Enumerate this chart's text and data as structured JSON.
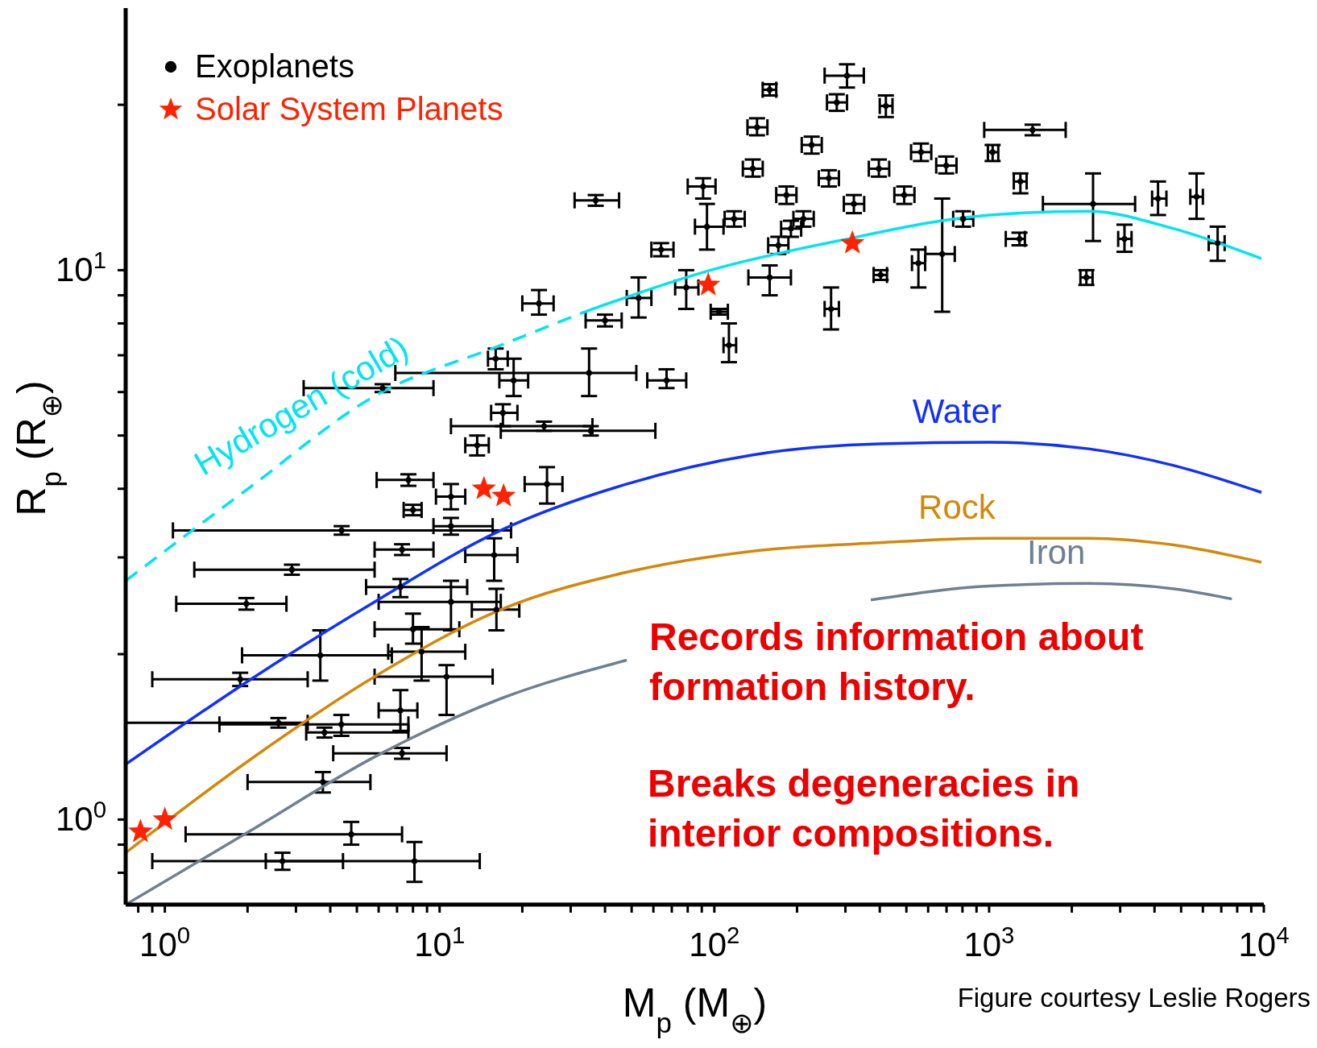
{
  "chart_data": {
    "type": "scatter",
    "xlabel": "M$_{p}$ (M$_{⊕}$)",
    "ylabel": "R$_{p}$ (R$_{⊕}$)",
    "log": "xy",
    "legend": "top left",
    "xlim": [
      0.72,
      10000
    ],
    "ylim": [
      0.7,
      30
    ],
    "xticks": [
      {
        "value": 0.8,
        "label": null
      },
      {
        "value": 0.9,
        "label": null
      },
      {
        "value": 1,
        "label": "10$^{0}$"
      },
      {
        "value": 2,
        "label": null
      },
      {
        "value": 3,
        "label": null
      },
      {
        "value": 4,
        "label": null
      },
      {
        "value": 5,
        "label": null
      },
      {
        "value": 6,
        "label": null
      },
      {
        "value": 7,
        "label": null
      },
      {
        "value": 8,
        "label": null
      },
      {
        "value": 9,
        "label": null
      },
      {
        "value": 10,
        "label": "10$^{1}$"
      },
      {
        "value": 20,
        "label": null
      },
      {
        "value": 30,
        "label": null
      },
      {
        "value": 40,
        "label": null
      },
      {
        "value": 50,
        "label": null
      },
      {
        "value": 60,
        "label": null
      },
      {
        "value": 70,
        "label": null
      },
      {
        "value": 80,
        "label": null
      },
      {
        "value": 90,
        "label": null
      },
      {
        "value": 100,
        "label": "10$^{2}$"
      },
      {
        "value": 200,
        "label": null
      },
      {
        "value": 300,
        "label": null
      },
      {
        "value": 400,
        "label": null
      },
      {
        "value": 500,
        "label": null
      },
      {
        "value": 600,
        "label": null
      },
      {
        "value": 700,
        "label": null
      },
      {
        "value": 800,
        "label": null
      },
      {
        "value": 900,
        "label": null
      },
      {
        "value": 1000,
        "label": "10$^{3}$"
      },
      {
        "value": 2000,
        "label": null
      },
      {
        "value": 3000,
        "label": null
      },
      {
        "value": 4000,
        "label": null
      },
      {
        "value": 5000,
        "label": null
      },
      {
        "value": 6000,
        "label": null
      },
      {
        "value": 7000,
        "label": null
      },
      {
        "value": 8000,
        "label": null
      },
      {
        "value": 9000,
        "label": null
      },
      {
        "value": 10000,
        "label": "10$^{4}$"
      }
    ],
    "yticks": [
      {
        "value": 0.8,
        "label": null
      },
      {
        "value": 0.9,
        "label": null
      },
      {
        "value": 1,
        "label": "10$^{0}$"
      },
      {
        "value": 2,
        "label": null
      },
      {
        "value": 3,
        "label": null
      },
      {
        "value": 4,
        "label": null
      },
      {
        "value": 5,
        "label": null
      },
      {
        "value": 6,
        "label": null
      },
      {
        "value": 7,
        "label": null
      },
      {
        "value": 8,
        "label": null
      },
      {
        "value": 9,
        "label": null
      },
      {
        "value": 10,
        "label": "10$^{1}$"
      },
      {
        "value": 20,
        "label": null
      }
    ],
    "series": [
      {
        "name": "Exoplanets",
        "marker": "circle",
        "color": "#000000",
        "x": [
          6.2,
          16,
          18.6,
          35,
          17,
          13.7,
          24,
          35.5,
          23,
          37,
          40,
          53,
          67,
          7.7,
          11,
          8.0,
          24.6,
          4.4,
          11,
          7.3,
          15.8,
          2.9,
          7.2,
          11,
          16.1,
          1.98,
          8.0,
          3.68,
          8.6,
          1.88,
          10.6,
          2.59,
          4.39,
          7.2,
          3.81,
          7.3,
          3.76,
          4.77,
          2.68,
          8.1,
          113,
          104,
          266,
          675,
          403,
          553,
          2260,
          1440,
          4120,
          5690,
          6790,
          3110,
          2390,
          1290,
          1030,
          1300,
          421,
          304,
          159,
          138,
          183,
          211,
          261,
          322,
          397,
          491,
          565,
          171,
          226,
          804,
          698,
          143,
          279,
          190,
          79,
          91,
          94,
          64,
          118,
          159
        ],
        "values": [
          6.1,
          6.9,
          6.3,
          6.5,
          5.5,
          4.8,
          5.2,
          5.1,
          8.7,
          13.4,
          8.1,
          8.9,
          6.3,
          4.15,
          3.87,
          3.66,
          4.08,
          3.36,
          3.42,
          3.1,
          3.03,
          2.85,
          2.65,
          2.49,
          2.41,
          2.47,
          2.22,
          1.99,
          2.02,
          1.8,
          1.82,
          1.5,
          1.49,
          1.58,
          1.44,
          1.32,
          1.17,
          0.94,
          0.84,
          0.84,
          7.3,
          8.4,
          8.5,
          10.7,
          9.8,
          10.3,
          9.7,
          18.0,
          13.5,
          13.6,
          11.2,
          11.4,
          13.2,
          11.4,
          16.4,
          14.5,
          19.9,
          22.6,
          21.3,
          15.3,
          13.7,
          12.4,
          14.7,
          13.2,
          15.3,
          13.7,
          16.4,
          11.1,
          16.9,
          12.4,
          15.5,
          18.2,
          20.2,
          11.9,
          9.3,
          14.2,
          12.0,
          10.9,
          12.4,
          9.7
        ],
        "xerrors": [
          [
            3.2,
            9.5
          ],
          [
            15,
            17.7
          ],
          [
            16.5,
            21
          ],
          [
            6.9,
            52
          ],
          [
            15.4,
            19.2
          ],
          [
            12.4,
            15.1
          ],
          [
            11,
            36
          ],
          [
            16.7,
            61
          ],
          [
            20,
            26
          ],
          [
            31,
            45
          ],
          [
            34,
            46
          ],
          [
            48,
            59
          ],
          [
            57,
            79
          ],
          [
            5.9,
            9.5
          ],
          [
            9.7,
            12.4
          ],
          [
            7.4,
            8.6
          ],
          [
            20.4,
            28
          ],
          [
            1.07,
            18.2
          ],
          [
            9.5,
            15.6
          ],
          [
            5.8,
            9.5
          ],
          [
            12.4,
            19.2
          ],
          [
            1.28,
            5.8
          ],
          [
            5.4,
            12.6
          ],
          [
            6.0,
            16.7
          ],
          [
            13.1,
            19.5
          ],
          [
            1.1,
            2.77
          ],
          [
            5.8,
            11.8
          ],
          [
            1.91,
            6.7
          ],
          [
            6.5,
            12.4
          ],
          [
            0.9,
            3.31
          ],
          [
            5.8,
            15.6
          ],
          [
            0.72,
            3.31
          ],
          [
            1.58,
            7.7
          ],
          [
            6.0,
            8.3
          ],
          [
            3.27,
            7.7
          ],
          [
            4.1,
            10.6
          ],
          [
            2.0,
            5.6
          ],
          [
            1.19,
            7.3
          ],
          [
            0.9,
            4.45
          ],
          [
            2.33,
            14.0
          ],
          [
            108,
            120
          ],
          [
            97,
            112
          ],
          [
            252,
            284
          ],
          [
            586,
            750
          ],
          [
            380,
            425
          ],
          [
            524,
            585
          ],
          [
            2150,
            2380
          ],
          [
            960,
            1900
          ],
          [
            3920,
            4420
          ],
          [
            5400,
            6000
          ],
          [
            6300,
            7200
          ],
          [
            2950,
            3300
          ],
          [
            1570,
            3400
          ],
          [
            1150,
            1350
          ],
          [
            990,
            1080
          ],
          [
            1230,
            1370
          ],
          [
            400,
            445
          ],
          [
            252,
            350
          ],
          [
            150,
            168
          ],
          [
            127,
            150
          ],
          [
            168,
            199
          ],
          [
            194,
            230
          ],
          [
            240,
            284
          ],
          [
            296,
            351
          ],
          [
            365,
            433
          ],
          [
            452,
            535
          ],
          [
            520,
            616
          ],
          [
            157,
            186
          ],
          [
            208,
            246
          ],
          [
            740,
            876
          ],
          [
            642,
            761
          ],
          [
            132,
            156
          ],
          [
            257,
            304
          ],
          [
            175,
            207
          ],
          [
            72,
            87.5
          ],
          [
            80,
            101
          ],
          [
            85,
            108
          ],
          [
            59,
            71
          ],
          [
            109,
            129
          ],
          [
            133,
            190
          ]
        ],
        "errors": [
          [
            6.0,
            6.2
          ],
          [
            6.6,
            7.2
          ],
          [
            5.9,
            6.9
          ],
          [
            5.9,
            7.2
          ],
          [
            5.2,
            5.7
          ],
          [
            4.6,
            5.0
          ],
          [
            5.1,
            5.3
          ],
          [
            5.0,
            5.2
          ],
          [
            8.3,
            9.2
          ],
          [
            13.1,
            13.7
          ],
          [
            7.9,
            8.3
          ],
          [
            8.2,
            9.7
          ],
          [
            6.1,
            6.6
          ],
          [
            4.05,
            4.25
          ],
          [
            3.67,
            4.08
          ],
          [
            3.58,
            3.74
          ],
          [
            3.76,
            4.38
          ],
          [
            3.3,
            3.42
          ],
          [
            3.3,
            3.54
          ],
          [
            3.03,
            3.17
          ],
          [
            2.72,
            3.25
          ],
          [
            2.79,
            2.91
          ],
          [
            2.54,
            2.74
          ],
          [
            2.21,
            2.72
          ],
          [
            2.21,
            2.63
          ],
          [
            2.41,
            2.53
          ],
          [
            2.09,
            2.37
          ],
          [
            1.79,
            2.21
          ],
          [
            1.79,
            2.24
          ],
          [
            1.75,
            1.85
          ],
          [
            1.55,
            1.91
          ],
          [
            1.47,
            1.53
          ],
          [
            1.42,
            1.55
          ],
          [
            1.45,
            1.72
          ],
          [
            1.41,
            1.47
          ],
          [
            1.29,
            1.35
          ],
          [
            1.12,
            1.22
          ],
          [
            0.9,
            0.99
          ],
          [
            0.81,
            0.87
          ],
          [
            0.77,
            0.91
          ],
          [
            6.8,
            8.0
          ],
          [
            8.3,
            8.5
          ],
          [
            7.8,
            9.3
          ],
          [
            8.4,
            13.5
          ],
          [
            9.6,
            10.0
          ],
          [
            9.3,
            10.9
          ],
          [
            9.4,
            10.0
          ],
          [
            17.6,
            18.4
          ],
          [
            12.6,
            14.5
          ],
          [
            12.4,
            15.0
          ],
          [
            10.4,
            12.0
          ],
          [
            10.8,
            12.1
          ],
          [
            11.3,
            15.0
          ],
          [
            11.1,
            11.7
          ],
          [
            15.8,
            16.9
          ],
          [
            13.8,
            15.0
          ],
          [
            19.0,
            20.8
          ],
          [
            21.5,
            23.7
          ],
          [
            20.8,
            21.8
          ],
          [
            14.8,
            15.9
          ],
          [
            13.2,
            14.2
          ],
          [
            12.0,
            12.8
          ],
          [
            14.2,
            15.2
          ],
          [
            12.7,
            13.7
          ],
          [
            14.8,
            15.9
          ],
          [
            13.2,
            14.2
          ],
          [
            15.8,
            17.0
          ],
          [
            10.7,
            11.5
          ],
          [
            16.3,
            17.5
          ],
          [
            12.0,
            12.8
          ],
          [
            15.0,
            16.1
          ],
          [
            17.6,
            18.9
          ],
          [
            19.5,
            20.9
          ],
          [
            11.5,
            12.3
          ],
          [
            8.5,
            10.0
          ],
          [
            13.5,
            14.7
          ],
          [
            10.9,
            13.2
          ],
          [
            10.6,
            11.2
          ],
          [
            12.0,
            12.8
          ],
          [
            9.0,
            10.2
          ]
        ]
      },
      {
        "name": "Solar System Planets",
        "marker": "star",
        "color": "#ff2200",
        "x": [
          0.815,
          1,
          14.5,
          17.1,
          95,
          318
        ],
        "values": [
          0.95,
          1,
          4.0,
          3.88,
          9.4,
          11.2
        ]
      },
      {
        "name": "Hydrogen (cold)",
        "type": "line",
        "line_style": "dashed",
        "color": "#00e5f0",
        "x": [
          0.72,
          2.02,
          5.8,
          16.7,
          33.8
        ],
        "values": [
          2.72,
          4.01,
          5.9,
          7.3,
          8.4
        ]
      },
      {
        "type": "line",
        "line_style": "solid",
        "color": "#00e5f0",
        "x": [
          33.8,
          97,
          280,
          1000,
          2300,
          4700,
          9800
        ],
        "values": [
          8.4,
          10,
          11.3,
          12.6,
          12.8,
          11.9,
          10.5
        ]
      },
      {
        "name": "Water",
        "type": "line",
        "line_style": "solid",
        "color": "#1030ff",
        "x": [
          0.72,
          2.02,
          5.8,
          16.7,
          48,
          138,
          398,
          1000,
          2300,
          4700,
          9800
        ],
        "values": [
          1.26,
          1.79,
          2.49,
          3.36,
          4.08,
          4.61,
          4.83,
          4.86,
          4.73,
          4.41,
          3.94
        ]
      },
      {
        "name": "Rock",
        "type": "line",
        "line_style": "solid",
        "color": "#d4880a",
        "x": [
          0.72,
          2.02,
          5.8,
          16.7,
          48,
          138,
          398,
          1000,
          2300,
          4700,
          9800
        ],
        "values": [
          0.87,
          1.28,
          1.82,
          2.41,
          2.82,
          3.08,
          3.19,
          3.25,
          3.25,
          3.16,
          2.94
        ]
      },
      {
        "name": "Iron",
        "type": "line",
        "line_style": "solid",
        "color": "#708090",
        "x": [
          0.72,
          2.02,
          5.8,
          16.7,
          48,
          138,
          371,
          1000,
          2300,
          4700,
          7650
        ],
        "values": [
          0.7,
          0.95,
          1.3,
          1.66,
          1.95,
          null,
          2.51,
          2.66,
          2.69,
          2.63,
          2.52
        ]
      }
    ],
    "annotations": [
      "Records information about formation history.",
      "Breaks degeneracies in interior compositions.",
      "Figure courtesy Leslie Rogers"
    ]
  }
}
